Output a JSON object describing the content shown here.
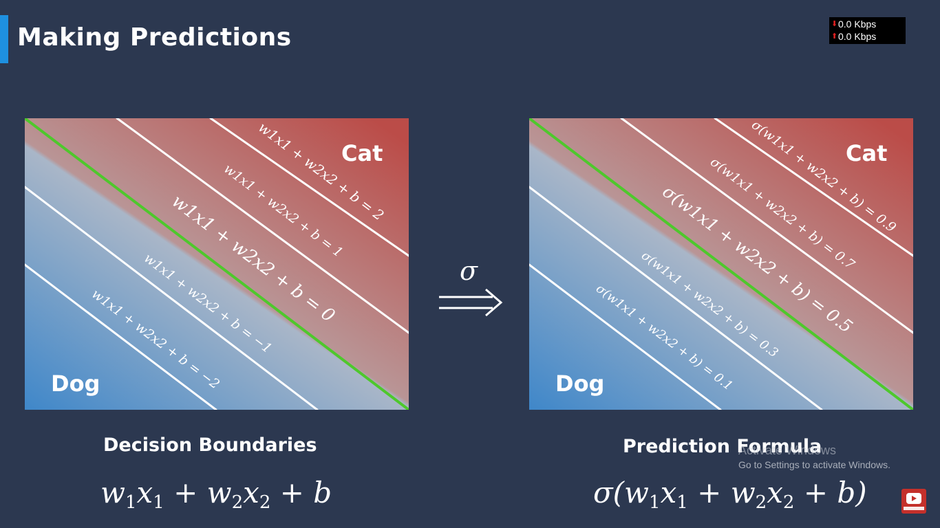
{
  "title": "Making Predictions",
  "network": {
    "down": "0.0 Kbps",
    "up": "0.0 Kbps"
  },
  "transform_symbol": "σ",
  "left_panel": {
    "top_class": "Cat",
    "bottom_class": "Dog",
    "lines": [
      "w1x1 + w2x2 + b = 2",
      "w1x1 + w2x2 + b = 1",
      "w1x1 + w2x2 + b = 0",
      "w1x1 + w2x2 + b = −1",
      "w1x1 + w2x2 + b = −2"
    ],
    "caption": "Decision Boundaries",
    "formula": "w1x1 + w2x2 + b"
  },
  "right_panel": {
    "top_class": "Cat",
    "bottom_class": "Dog",
    "lines": [
      "σ(w1x1 + w2x2 + b) = 0.9",
      "σ(w1x1 + w2x2 + b) = 0.7",
      "σ(w1x1 + w2x2 + b) = 0.5",
      "σ(w1x1 + w2x2 + b) = 0.3",
      "σ(w1x1 + w2x2 + b) = 0.1"
    ],
    "caption": "Prediction Formula",
    "formula": "σ(w1x1 + w2x2 + b)"
  },
  "watermark": {
    "line1": "Activate Windows",
    "line2": "Go to Settings to activate Windows."
  },
  "colors": {
    "background": "#2c3850",
    "accent": "#1e90e0",
    "cat": "#b84a48",
    "dog": "#3c85c8",
    "boundary": "#4ec82c"
  }
}
